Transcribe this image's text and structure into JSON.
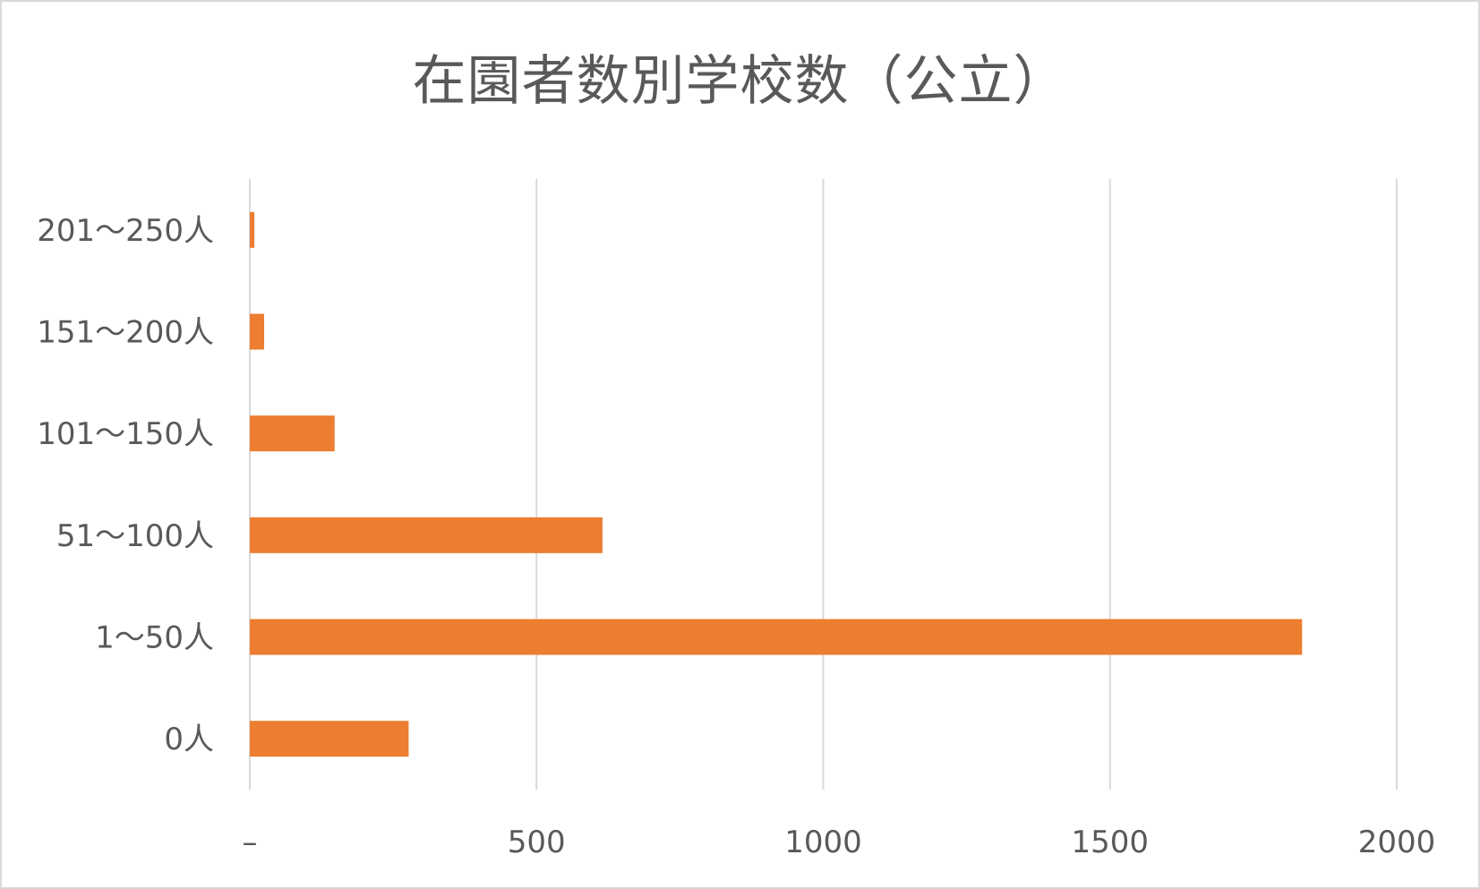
{
  "chart_data": {
    "type": "bar",
    "orientation": "horizontal",
    "title": "在園者数別学校数（公立）",
    "xlabel": "",
    "ylabel": "",
    "categories": [
      "201～250人",
      "151～200人",
      "101～150人",
      "51～100人",
      "1～50人",
      "0人"
    ],
    "values": [
      8,
      25,
      148,
      615,
      1835,
      277
    ],
    "xlim": [
      0,
      2000
    ],
    "x_ticks": [
      0,
      500,
      1000,
      1500,
      2000
    ],
    "x_tick_labels": [
      "–",
      "500",
      "1000",
      "1500",
      "2000"
    ],
    "grid": "vertical",
    "legend": "none",
    "bar_color": "#ED7D31",
    "grid_color": "#d9d9d9"
  }
}
